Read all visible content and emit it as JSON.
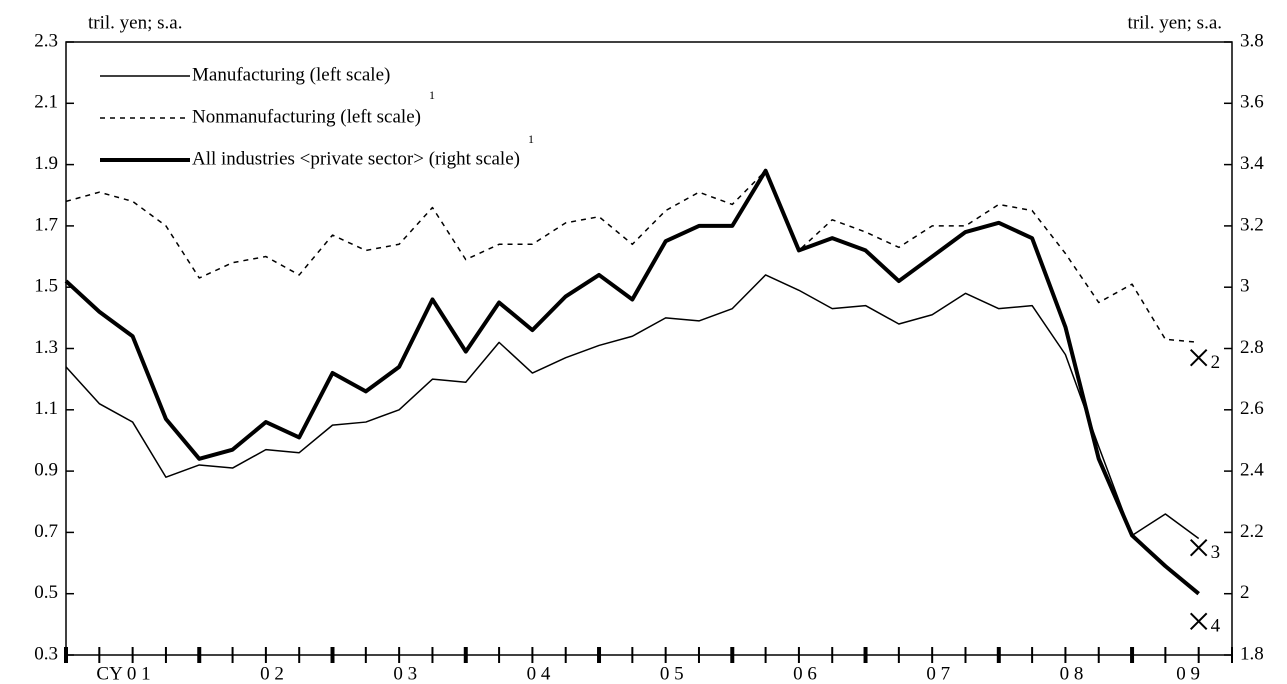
{
  "chart_data": {
    "type": "line",
    "ylabel": "tril. yen; s.a.",
    "y2label": "tril. yen; s.a.",
    "categories": [
      "CY 0 1",
      null,
      null,
      null,
      "0 2",
      null,
      null,
      null,
      "0 3",
      null,
      null,
      null,
      "0 4",
      null,
      null,
      null,
      "0 5",
      null,
      null,
      null,
      "0 6",
      null,
      null,
      null,
      "0 7",
      null,
      null,
      null,
      "0 8",
      null,
      null,
      null,
      "0 9",
      null,
      null
    ],
    "ylim": [
      0.3,
      2.3
    ],
    "yticks": [
      0.3,
      0.5,
      0.7,
      0.9,
      1.1,
      1.3,
      1.5,
      1.7,
      1.9,
      2.1,
      2.3
    ],
    "y2lim": [
      1.8,
      3.8
    ],
    "y2ticks": [
      1.8,
      2.0,
      2.2,
      2.4,
      2.6,
      2.8,
      3.0,
      3.2,
      3.4,
      3.6,
      3.8
    ],
    "legend": "upper left",
    "series": [
      {
        "name": "Manufacturing (left scale)",
        "color": "#000",
        "style": "thin",
        "axis": "y",
        "values": [
          1.24,
          1.12,
          1.06,
          0.88,
          0.92,
          0.91,
          0.97,
          0.96,
          1.05,
          1.06,
          1.1,
          1.2,
          1.19,
          1.32,
          1.22,
          1.27,
          1.31,
          1.34,
          1.4,
          1.39,
          1.43,
          1.54,
          1.49,
          1.43,
          1.44,
          1.38,
          1.41,
          1.48,
          1.43,
          1.44,
          1.28,
          0.98,
          0.69,
          0.76,
          0.68
        ]
      },
      {
        "name": "Nonmanufacturing (left scale)",
        "footnote": "1",
        "color": "#000",
        "style": "dashed",
        "axis": "y",
        "values": [
          1.78,
          1.81,
          1.78,
          1.7,
          1.53,
          1.58,
          1.6,
          1.54,
          1.67,
          1.62,
          1.64,
          1.76,
          1.59,
          1.64,
          1.64,
          1.71,
          1.73,
          1.64,
          1.75,
          1.81,
          1.77,
          1.88,
          1.62,
          1.72,
          1.68,
          1.63,
          1.7,
          1.7,
          1.77,
          1.75,
          1.61,
          1.45,
          1.51,
          1.33,
          1.32
        ]
      },
      {
        "name": "All industries <private sector> (right scale)",
        "footnote": "1",
        "color": "#000",
        "style": "thick",
        "axis": "y2",
        "values": [
          3.02,
          2.92,
          2.84,
          2.57,
          2.44,
          2.47,
          2.56,
          2.51,
          2.72,
          2.66,
          2.74,
          2.96,
          2.79,
          2.95,
          2.86,
          2.97,
          3.04,
          2.96,
          3.15,
          3.2,
          3.2,
          3.38,
          3.12,
          3.16,
          3.12,
          3.02,
          3.1,
          3.18,
          3.21,
          3.16,
          2.87,
          2.44,
          2.19,
          2.09,
          2.0
        ]
      }
    ],
    "markers": [
      {
        "label": "2",
        "index": 34,
        "value": 1.27,
        "axis": "y"
      },
      {
        "label": "3",
        "index": 34,
        "value": 0.65,
        "axis": "y"
      },
      {
        "label": "4",
        "index": 34,
        "value": 1.91,
        "axis": "y2"
      }
    ]
  }
}
